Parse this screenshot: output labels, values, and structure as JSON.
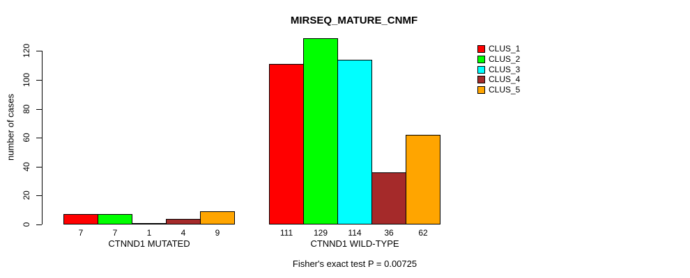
{
  "chart_data": {
    "type": "bar",
    "title": "MIRSEQ_MATURE_CNMF",
    "categories": [
      "CTNND1 MUTATED",
      "CTNND1 WILD-TYPE"
    ],
    "series": [
      {
        "name": "CLUS_1",
        "color": "#FF0000",
        "values": [
          7,
          111
        ]
      },
      {
        "name": "CLUS_2",
        "color": "#00FF00",
        "values": [
          7,
          129
        ]
      },
      {
        "name": "CLUS_3",
        "color": "#00FFFF",
        "values": [
          1,
          114
        ]
      },
      {
        "name": "CLUS_4",
        "color": "#A52A2A",
        "values": [
          4,
          36
        ]
      },
      {
        "name": "CLUS_5",
        "color": "#FFA500",
        "values": [
          9,
          62
        ]
      }
    ],
    "xlabel": "",
    "ylabel": "number of cases",
    "ylim": [
      0,
      130
    ],
    "yticks": [
      0,
      20,
      40,
      60,
      80,
      100,
      120
    ],
    "grid": false,
    "legend_position": "top-right",
    "bar_border_color": "#000000",
    "bar_value_labels": true,
    "annotation": "Fisher's exact test P = 0.00725"
  }
}
